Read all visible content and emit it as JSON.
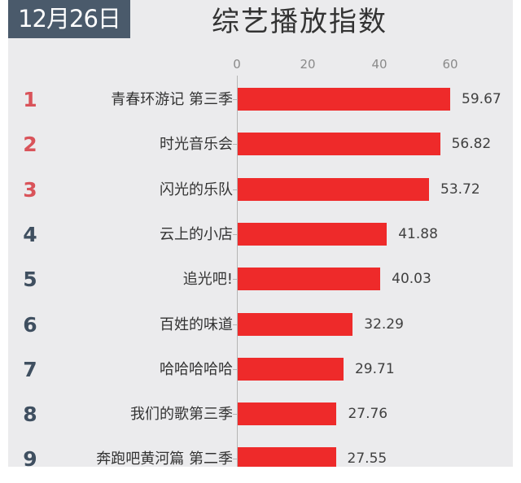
{
  "header": {
    "date": "12月26日",
    "title": "综艺播放指数"
  },
  "colors": {
    "bar": "#ee2a2a",
    "rank_top": "#d9535a",
    "rank_rest": "#3f4f60",
    "date_badge_bg": "#4a5a6b",
    "card_bg": "#ebebed"
  },
  "chart_data": {
    "type": "bar",
    "orientation": "horizontal",
    "title": "综艺播放指数",
    "subtitle": "12月26日",
    "xlabel": "",
    "ylabel": "",
    "xlim": [
      0,
      60
    ],
    "x_ticks": [
      "0",
      "20",
      "40",
      "60"
    ],
    "x_axis_position": "top",
    "grid": false,
    "legend": null,
    "categories": [
      "青春环游记 第三季",
      "时光音乐会",
      "闪光的乐队",
      "云上的小店",
      "追光吧!",
      "百姓的味道",
      "哈哈哈哈哈",
      "我们的歌第三季",
      "奔跑吧黄河篇 第二季"
    ],
    "values": [
      59.67,
      56.82,
      53.72,
      41.88,
      40.03,
      32.29,
      29.71,
      27.76,
      27.55
    ],
    "ranks": [
      "1",
      "2",
      "3",
      "4",
      "5",
      "6",
      "7",
      "8",
      "9"
    ],
    "value_labels": [
      "59.67",
      "56.82",
      "53.72",
      "41.88",
      "40.03",
      "32.29",
      "29.71",
      "27.76",
      "27.55"
    ]
  }
}
